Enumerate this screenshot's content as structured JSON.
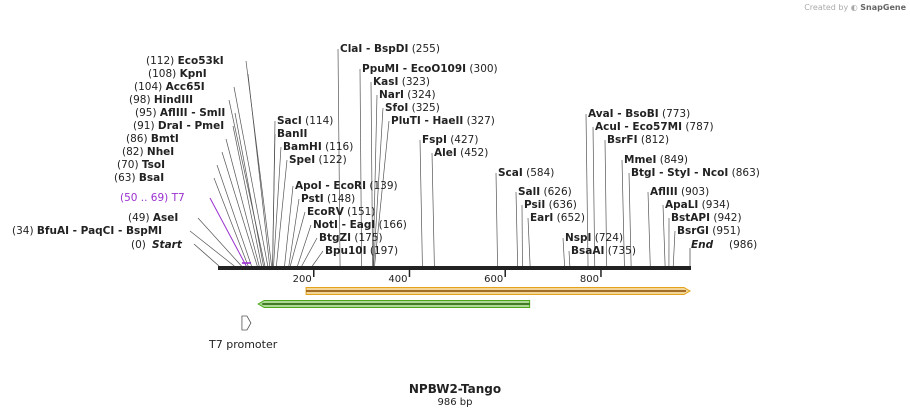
{
  "credit": {
    "created_by": "Created by",
    "brand": "SnapGene"
  },
  "map": {
    "name": "NPBW2-Tango",
    "size_label": "986 bp",
    "length": 986,
    "axis_ticks": [
      200,
      400,
      600,
      800
    ],
    "start_label": "Start",
    "start_pos": "(0)",
    "end_label": "End",
    "end_pos": "(986)"
  },
  "sites": [
    {
      "name": "BfuAI",
      "pos": "(34)",
      "extra": [
        "PaqCI",
        "BspMI"
      ],
      "site": 34
    },
    {
      "name": "AseI",
      "pos": "(49)",
      "extra": [],
      "site": 49
    },
    {
      "name": "T7",
      "pos": "(50 .. 69)",
      "extra": [],
      "site": 59,
      "primer": true
    },
    {
      "name": "BsaI",
      "pos": "(63)",
      "extra": [],
      "site": 63
    },
    {
      "name": "TsoI",
      "pos": "(70)",
      "extra": [],
      "site": 70
    },
    {
      "name": "NheI",
      "pos": "(82)",
      "extra": [],
      "site": 82
    },
    {
      "name": "BmtI",
      "pos": "(86)",
      "extra": [],
      "site": 86
    },
    {
      "name": "DraI",
      "pos": "(91)",
      "extra": [
        "PmeI"
      ],
      "site": 91
    },
    {
      "name": "AflIII",
      "pos": "(95)",
      "extra": [
        "SmlI"
      ],
      "site": 95
    },
    {
      "name": "HindIII",
      "pos": "(98)",
      "extra": [],
      "site": 98
    },
    {
      "name": "Acc65I",
      "pos": "(104)",
      "extra": [],
      "site": 104
    },
    {
      "name": "KpnI",
      "pos": "(108)",
      "extra": [],
      "site": 108
    },
    {
      "name": "Eco53kI",
      "pos": "(112)",
      "extra": [],
      "site": 112
    },
    {
      "name": "SacI",
      "pos": "(114)",
      "extra": [],
      "site": 114
    },
    {
      "name": "BanII",
      "pos": "",
      "extra": [],
      "site": 114
    },
    {
      "name": "BamHI",
      "pos": "(116)",
      "extra": [],
      "site": 116
    },
    {
      "name": "SpeI",
      "pos": "(122)",
      "extra": [],
      "site": 122
    },
    {
      "name": "ApoI",
      "pos": "(139)",
      "extra": [
        "EcoRI"
      ],
      "site": 139
    },
    {
      "name": "PstI",
      "pos": "(148)",
      "extra": [],
      "site": 148
    },
    {
      "name": "EcoRV",
      "pos": "(151)",
      "extra": [],
      "site": 151
    },
    {
      "name": "NotI",
      "pos": "(166)",
      "extra": [
        "EagI"
      ],
      "site": 166
    },
    {
      "name": "BtgZI",
      "pos": "(175)",
      "extra": [],
      "site": 175
    },
    {
      "name": "Bpu10I",
      "pos": "(197)",
      "extra": [],
      "site": 197
    },
    {
      "name": "ClaI",
      "pos": "(255)",
      "extra": [
        "BspDI"
      ],
      "site": 255
    },
    {
      "name": "PpuMI",
      "pos": "(300)",
      "extra": [
        "EcoO109I"
      ],
      "site": 300
    },
    {
      "name": "KasI",
      "pos": "(323)",
      "extra": [],
      "site": 323
    },
    {
      "name": "NarI",
      "pos": "(324)",
      "extra": [],
      "site": 324
    },
    {
      "name": "SfoI",
      "pos": "(325)",
      "extra": [],
      "site": 325
    },
    {
      "name": "PluTI",
      "pos": "(327)",
      "extra": [
        "HaeII"
      ],
      "site": 327
    },
    {
      "name": "FspI",
      "pos": "(427)",
      "extra": [],
      "site": 427
    },
    {
      "name": "AleI",
      "pos": "(452)",
      "extra": [],
      "site": 452
    },
    {
      "name": "ScaI",
      "pos": "(584)",
      "extra": [],
      "site": 584
    },
    {
      "name": "SalI",
      "pos": "(626)",
      "extra": [],
      "site": 626
    },
    {
      "name": "PsiI",
      "pos": "(636)",
      "extra": [],
      "site": 636
    },
    {
      "name": "EarI",
      "pos": "(652)",
      "extra": [],
      "site": 652
    },
    {
      "name": "NspI",
      "pos": "(724)",
      "extra": [],
      "site": 724
    },
    {
      "name": "BsaAI",
      "pos": "(735)",
      "extra": [],
      "site": 735
    },
    {
      "name": "AvaI",
      "pos": "(773)",
      "extra": [
        "BsoBI"
      ],
      "site": 773
    },
    {
      "name": "AcuI",
      "pos": "(787)",
      "extra": [
        "Eco57MI"
      ],
      "site": 787
    },
    {
      "name": "BsrFI",
      "pos": "(812)",
      "extra": [],
      "site": 812
    },
    {
      "name": "MmeI",
      "pos": "(849)",
      "extra": [],
      "site": 849
    },
    {
      "name": "BtgI",
      "pos": "(863)",
      "extra": [
        "StyI",
        "NcoI"
      ],
      "site": 863
    },
    {
      "name": "AflIII",
      "pos": "(903)",
      "extra": [],
      "site": 903
    },
    {
      "name": "ApaLI",
      "pos": "(934)",
      "extra": [],
      "site": 934
    },
    {
      "name": "BstAPI",
      "pos": "(942)",
      "extra": [],
      "site": 942
    },
    {
      "name": "BsrGI",
      "pos": "(951)",
      "extra": [],
      "site": 951
    }
  ],
  "features": [
    {
      "name": "orange-orf",
      "start": 184,
      "end": 986,
      "direction": "forward",
      "color": "#e3a21a"
    },
    {
      "name": "green-orf",
      "start": 84,
      "end": 651,
      "direction": "reverse",
      "color": "#4aa81a"
    },
    {
      "name": "T7 promoter",
      "start": 50,
      "end": 69,
      "direction": "forward",
      "color": "#ffffff"
    }
  ],
  "promoter_label": "T7 promoter",
  "colors": {
    "primer": "#9a30d0",
    "line": "#555555",
    "backbone": "#222222"
  }
}
